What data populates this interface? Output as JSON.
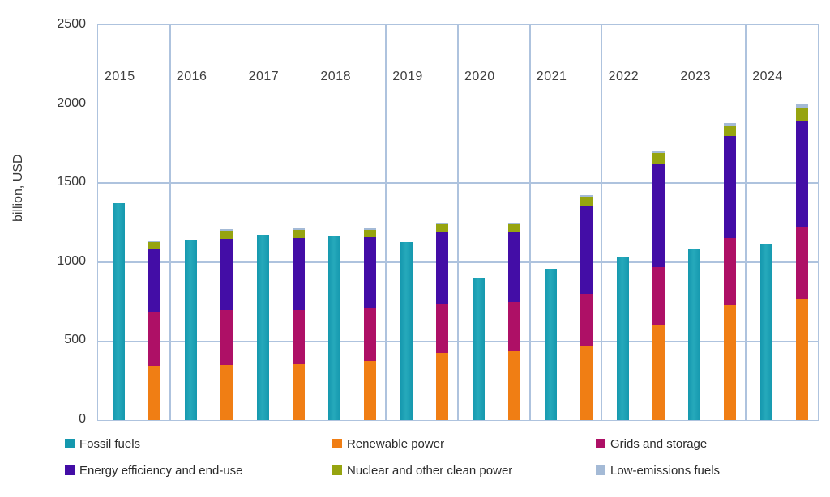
{
  "chart_data": {
    "type": "bar",
    "subtype": "grouped-and-stacked",
    "title": "",
    "xlabel": "",
    "ylabel": "billion, USD",
    "ylim": [
      0,
      2500
    ],
    "yticks": [
      0,
      500,
      1000,
      1500,
      2000,
      2500
    ],
    "grid": true,
    "legend_position": "bottom",
    "categories": [
      "2015",
      "2016",
      "2017",
      "2018",
      "2019",
      "2020",
      "2021",
      "2022",
      "2023",
      "2024"
    ],
    "series": [
      {
        "name": "Fossil fuels",
        "stack": "fossil",
        "color": "#1598ae",
        "values": [
          1375,
          1145,
          1175,
          1170,
          1125,
          895,
          960,
          1035,
          1085,
          1115
        ]
      },
      {
        "name": "Renewable power",
        "stack": "clean",
        "color": "#f07e14",
        "values": [
          345,
          350,
          355,
          375,
          425,
          435,
          465,
          600,
          730,
          770
        ]
      },
      {
        "name": "Grids and storage",
        "stack": "clean",
        "color": "#ae1066",
        "values": [
          335,
          345,
          340,
          330,
          310,
          315,
          335,
          370,
          425,
          450
        ]
      },
      {
        "name": "Energy efficiency and end-use",
        "stack": "clean",
        "color": "#430da6",
        "values": [
          400,
          455,
          460,
          455,
          455,
          440,
          560,
          650,
          645,
          670
        ]
      },
      {
        "name": "Nuclear and other clean power",
        "stack": "clean",
        "color": "#96a410",
        "values": [
          45,
          50,
          50,
          45,
          50,
          50,
          55,
          70,
          60,
          80
        ]
      },
      {
        "name": "Low-emissions fuels",
        "stack": "clean",
        "color": "#a4bad6",
        "values": [
          5,
          10,
          10,
          10,
          10,
          10,
          10,
          15,
          20,
          30
        ]
      }
    ],
    "colors": {
      "grid": "#aec3de",
      "axis_text": "#383838"
    },
    "legend": [
      "Fossil fuels",
      "Renewable power",
      "Grids and storage",
      "Energy efficiency and end-use",
      "Nuclear and other clean power",
      "Low-emissions fuels"
    ]
  }
}
